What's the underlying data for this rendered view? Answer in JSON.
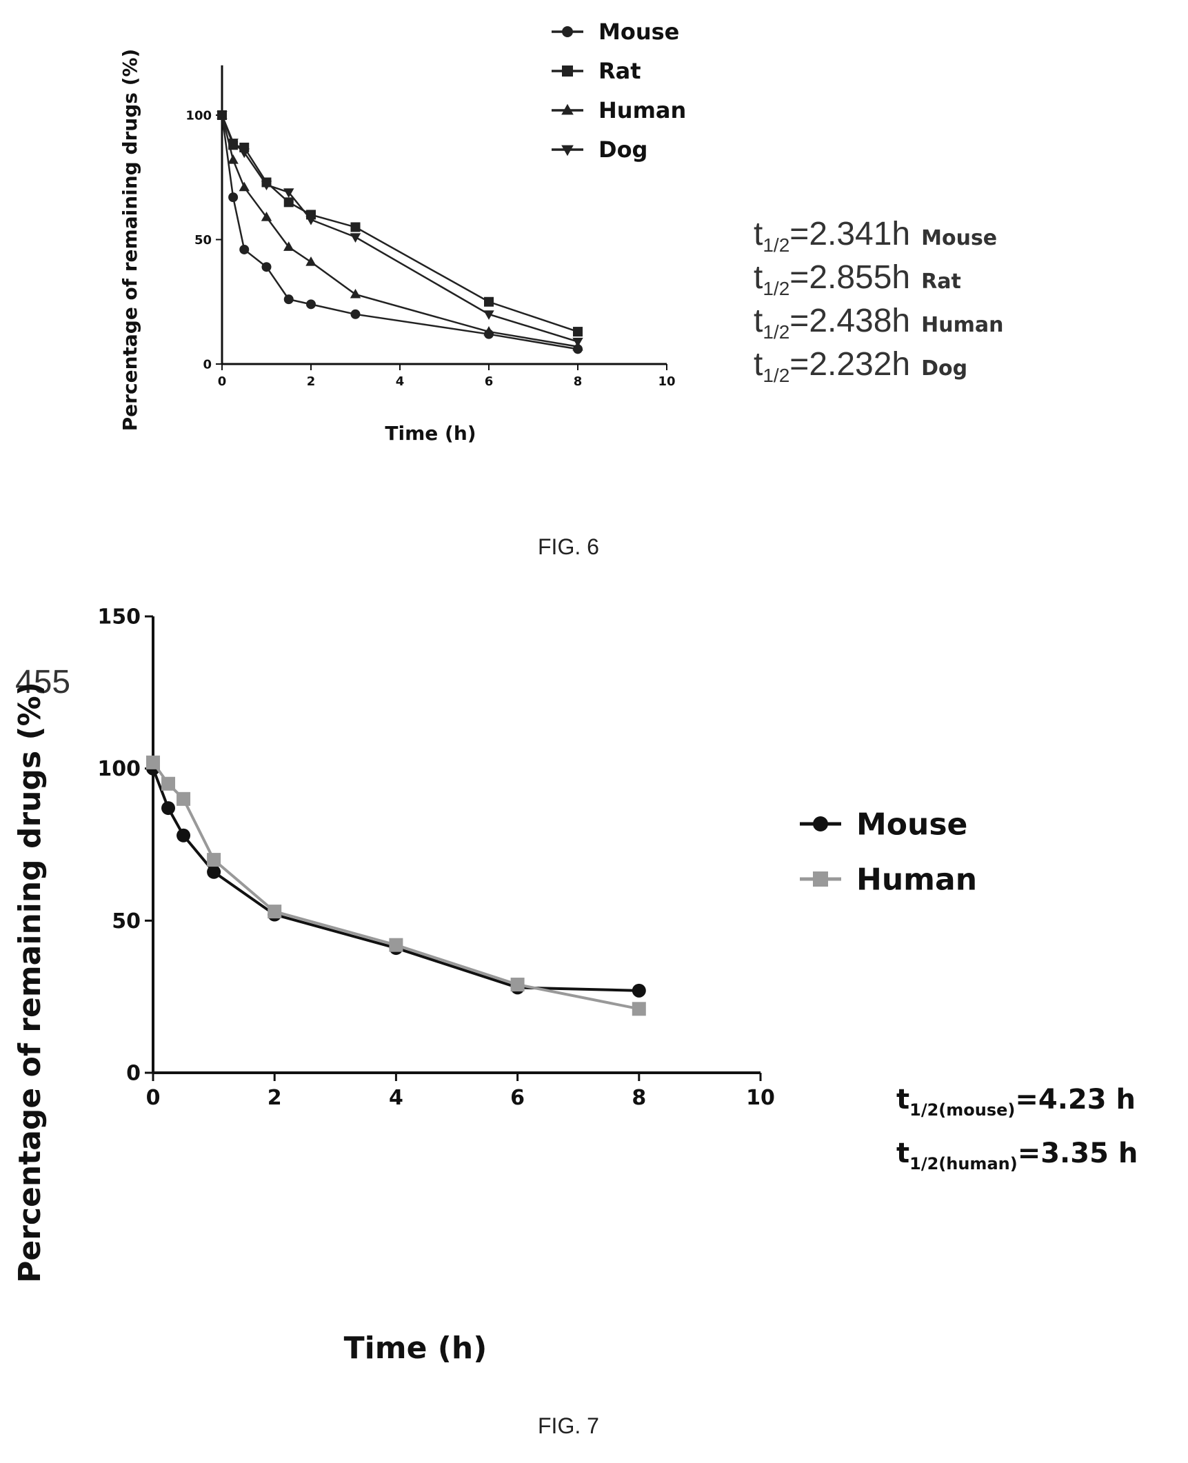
{
  "page": {
    "page_number": "455"
  },
  "figure6": {
    "caption": "FIG. 6",
    "half_lives": [
      {
        "t": "t",
        "sub": "1/2",
        "value": "=2.341h",
        "species": "Mouse"
      },
      {
        "t": "t",
        "sub": "1/2",
        "value": "=2.855h",
        "species": "Rat"
      },
      {
        "t": "t",
        "sub": "1/2",
        "value": "=2.438h",
        "species": "Human"
      },
      {
        "t": "t",
        "sub": "1/2",
        "value": "=2.232h",
        "species": "Dog"
      }
    ]
  },
  "figure7": {
    "caption": "FIG. 7",
    "half_lives": [
      {
        "t": "t",
        "sub": "1/2(mouse)",
        "value": "=4.23 h"
      },
      {
        "t": "t",
        "sub": "1/2(human)",
        "value": "=3.35 h"
      }
    ]
  },
  "chart_data": [
    {
      "type": "line",
      "xlabel": "Time (h)",
      "ylabel": "Percentage of remaining drugs (%)",
      "xlim": [
        0,
        10
      ],
      "ylim": [
        0,
        120
      ],
      "xticks": [
        "0",
        "2",
        "4",
        "6",
        "8",
        "10"
      ],
      "yticks": [
        "0",
        "50",
        "100"
      ],
      "legend_position": "top-right",
      "marker_color": "#222222",
      "series": [
        {
          "name": "Mouse",
          "marker": "circle",
          "x": [
            0,
            0.25,
            0.5,
            1,
            1.5,
            2,
            3,
            6,
            8
          ],
          "y": [
            100,
            67,
            46,
            39,
            26,
            24,
            20,
            12,
            6
          ]
        },
        {
          "name": "Rat",
          "marker": "square",
          "x": [
            0,
            0.25,
            0.5,
            1,
            1.5,
            2,
            3,
            6,
            8
          ],
          "y": [
            100,
            88,
            87,
            73,
            65,
            60,
            55,
            25,
            13
          ]
        },
        {
          "name": "Human",
          "marker": "triangle-up",
          "x": [
            0,
            0.25,
            0.5,
            1,
            1.5,
            2,
            3,
            6,
            8
          ],
          "y": [
            100,
            82,
            71,
            59,
            47,
            41,
            28,
            13,
            7
          ]
        },
        {
          "name": "Dog",
          "marker": "triangle-down",
          "x": [
            0,
            0.25,
            0.5,
            1,
            1.5,
            2,
            3,
            6,
            8
          ],
          "y": [
            100,
            89,
            85,
            72,
            69,
            58,
            51,
            20,
            9
          ]
        }
      ]
    },
    {
      "type": "line",
      "xlabel": "Time (h)",
      "ylabel": "Percentage of remaining drugs (%)",
      "xlim": [
        0,
        10
      ],
      "ylim": [
        0,
        150
      ],
      "xticks": [
        "0",
        "2",
        "4",
        "6",
        "8",
        "10"
      ],
      "yticks": [
        "0",
        "50",
        "100",
        "150"
      ],
      "legend_position": "top-right",
      "series": [
        {
          "name": "Mouse",
          "color": "#111111",
          "marker": "circle",
          "x": [
            0,
            0.25,
            0.5,
            1,
            2,
            4,
            6,
            8
          ],
          "y": [
            100,
            87,
            78,
            66,
            52,
            41,
            28,
            27
          ]
        },
        {
          "name": "Human",
          "color": "#999999",
          "marker": "square",
          "x": [
            0,
            0.25,
            0.5,
            1,
            2,
            4,
            6,
            8
          ],
          "y": [
            102,
            95,
            90,
            70,
            53,
            42,
            29,
            21
          ]
        }
      ]
    }
  ]
}
